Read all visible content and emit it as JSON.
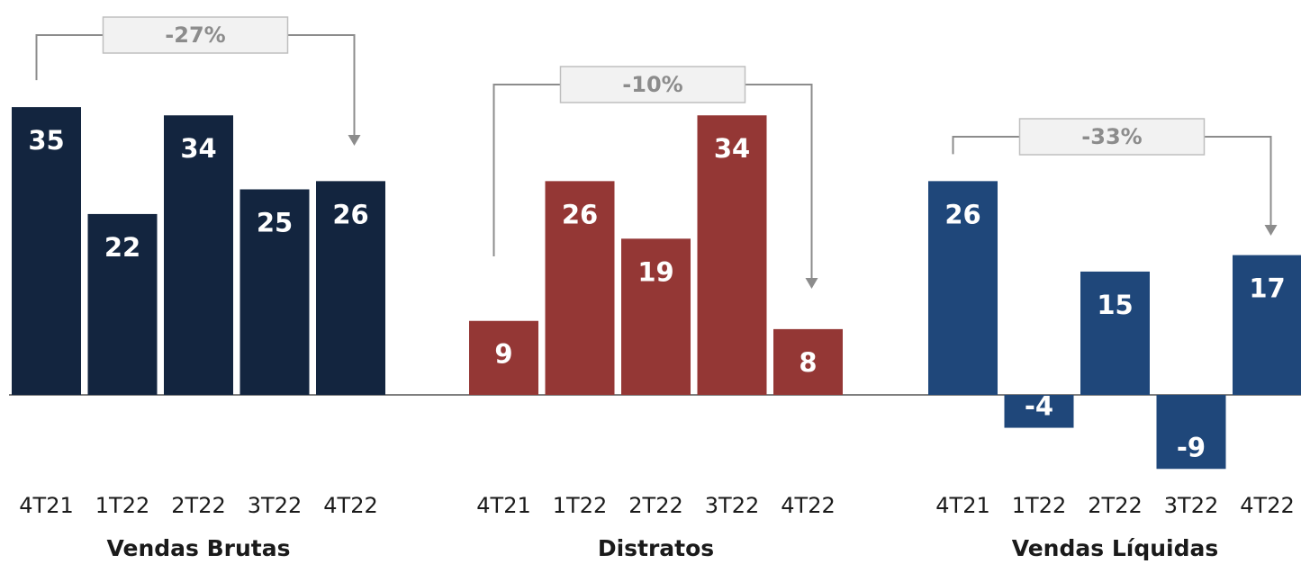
{
  "chart_data": [
    {
      "type": "bar",
      "title": "Vendas Brutas",
      "categories": [
        "4T21",
        "1T22",
        "2T22",
        "3T22",
        "4T22"
      ],
      "values": [
        35,
        22,
        34,
        25,
        26
      ],
      "color": "#13253f",
      "change_label": "-27%"
    },
    {
      "type": "bar",
      "title": "Distratos",
      "categories": [
        "4T21",
        "1T22",
        "2T22",
        "3T22",
        "4T22"
      ],
      "values": [
        9,
        26,
        19,
        34,
        8
      ],
      "color": "#943735",
      "change_label": "-10%"
    },
    {
      "type": "bar",
      "title": "Vendas Líquidas",
      "categories": [
        "4T21",
        "1T22",
        "2T22",
        "3T22",
        "4T22"
      ],
      "values": [
        26,
        -4,
        15,
        -9,
        17
      ],
      "color": "#1f477a",
      "change_label": "-33%"
    }
  ],
  "colors": {
    "baseline": "#7f7f7f",
    "bracket": "#8c8c8c",
    "label_box_fill": "#f2f2f2",
    "label_box_stroke": "#bfbfbf"
  }
}
